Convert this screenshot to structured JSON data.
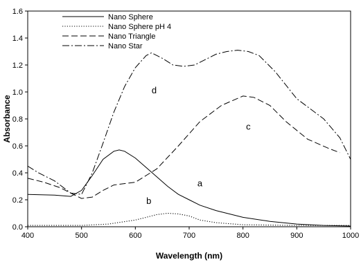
{
  "chart_data": {
    "type": "line",
    "xlabel": "Wavelength (nm)",
    "ylabel": "Absorbance",
    "xlim": [
      400,
      1000
    ],
    "ylim": [
      0,
      1.6
    ],
    "xticks": [
      400,
      500,
      600,
      700,
      800,
      900,
      1000
    ],
    "yticks": [
      0.0,
      0.2,
      0.4,
      0.6,
      0.8,
      1.0,
      1.2,
      1.4,
      1.6
    ],
    "xtick_labels": [
      "400",
      "500",
      "600",
      "700",
      "800",
      "900",
      "1000"
    ],
    "ytick_labels": [
      "0.0",
      "0.2",
      "0.4",
      "0.6",
      "0.8",
      "1.0",
      "1.2",
      "1.4",
      "1.6"
    ],
    "grid": false,
    "legend_position": "top-left",
    "series": [
      {
        "name": "Nano Sphere",
        "style": "solid",
        "label": "a",
        "label_at": [
          720,
          0.3
        ],
        "x": [
          400,
          450,
          480,
          500,
          520,
          540,
          560,
          570,
          580,
          600,
          620,
          640,
          660,
          680,
          700,
          720,
          750,
          800,
          850,
          900,
          950,
          1000
        ],
        "y": [
          0.24,
          0.235,
          0.225,
          0.27,
          0.38,
          0.5,
          0.56,
          0.57,
          0.56,
          0.51,
          0.44,
          0.37,
          0.3,
          0.24,
          0.2,
          0.16,
          0.12,
          0.07,
          0.04,
          0.02,
          0.01,
          0.005
        ]
      },
      {
        "name": "Nano Sphere pH 4",
        "style": "dotted",
        "label": "b",
        "label_at": [
          625,
          0.17
        ],
        "x": [
          400,
          500,
          550,
          600,
          620,
          640,
          660,
          680,
          700,
          720,
          750,
          800,
          900,
          1000
        ],
        "y": [
          0.01,
          0.01,
          0.02,
          0.05,
          0.07,
          0.09,
          0.1,
          0.095,
          0.08,
          0.05,
          0.03,
          0.015,
          0.01,
          0.01
        ]
      },
      {
        "name": "Nano Triangle",
        "style": "dashed",
        "label": "c",
        "label_at": [
          810,
          0.72
        ],
        "x": [
          400,
          430,
          460,
          480,
          500,
          520,
          540,
          560,
          600,
          640,
          680,
          720,
          760,
          800,
          820,
          850,
          880,
          920,
          960,
          980
        ],
        "y": [
          0.36,
          0.33,
          0.29,
          0.25,
          0.21,
          0.22,
          0.27,
          0.31,
          0.33,
          0.43,
          0.6,
          0.78,
          0.9,
          0.97,
          0.96,
          0.9,
          0.78,
          0.65,
          0.58,
          0.55
        ]
      },
      {
        "name": "Nano Star",
        "style": "dash-dot",
        "label": "d",
        "label_at": [
          635,
          0.99
        ],
        "x": [
          400,
          420,
          450,
          480,
          500,
          520,
          540,
          560,
          580,
          600,
          620,
          630,
          650,
          670,
          690,
          710,
          730,
          750,
          770,
          790,
          810,
          830,
          860,
          900,
          950,
          980,
          1000
        ],
        "y": [
          0.45,
          0.4,
          0.34,
          0.25,
          0.24,
          0.4,
          0.62,
          0.85,
          1.04,
          1.18,
          1.27,
          1.29,
          1.25,
          1.2,
          1.19,
          1.2,
          1.24,
          1.28,
          1.3,
          1.31,
          1.3,
          1.27,
          1.15,
          0.95,
          0.8,
          0.66,
          0.5
        ]
      }
    ]
  }
}
